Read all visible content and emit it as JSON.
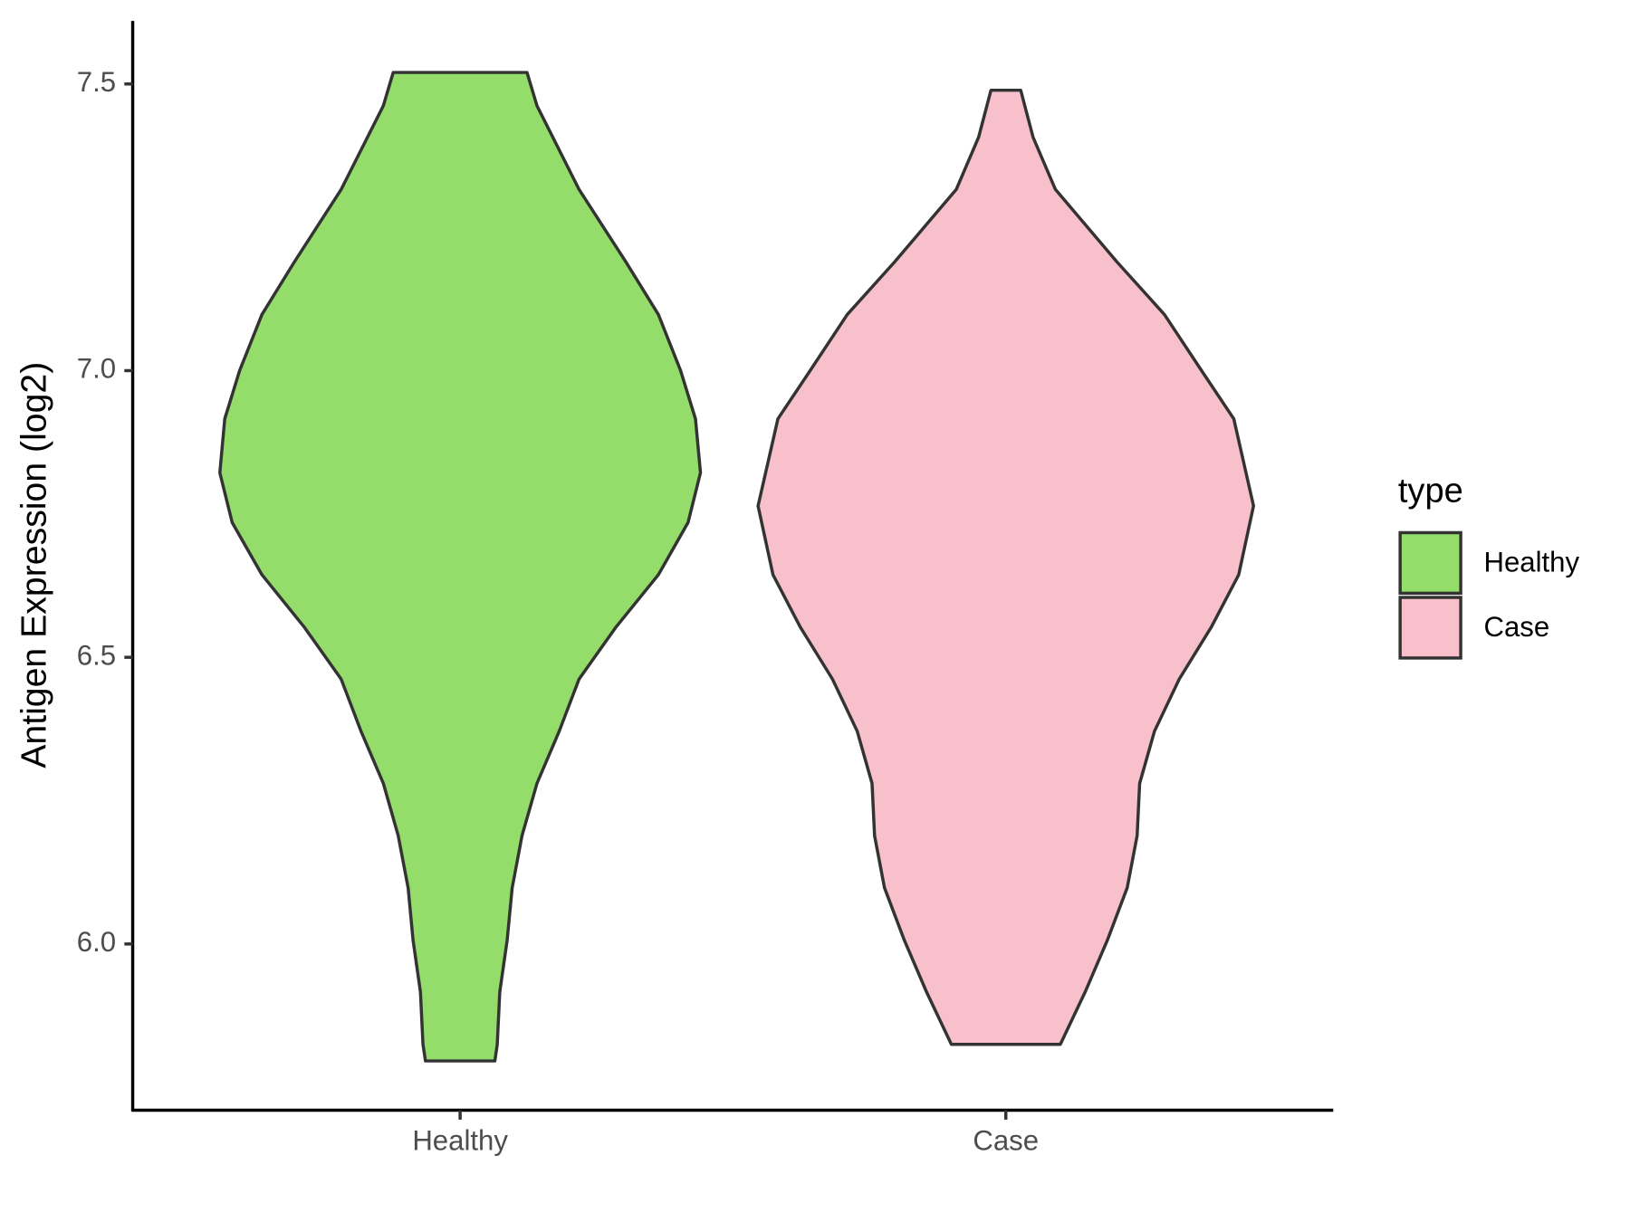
{
  "chart_data": {
    "type": "violin",
    "y_label": "Antigen Expression (log2)",
    "categories": [
      "Healthy",
      "Case"
    ],
    "ylim": [
      5.71,
      7.61
    ],
    "yticks": [
      {
        "value": 6.0,
        "label": "6.0"
      },
      {
        "value": 6.5,
        "label": "6.5"
      },
      {
        "value": 7.0,
        "label": "7.0"
      },
      {
        "value": 7.5,
        "label": "7.5"
      }
    ],
    "legend_title": "type",
    "legend_position": "right",
    "series": [
      {
        "name": "Healthy",
        "color": "#95dd6b",
        "y": [
          7.52,
          7.462,
          7.316,
          7.189,
          7.098,
          7.0,
          6.916,
          6.822,
          6.735,
          6.644,
          6.553,
          6.462,
          6.371,
          6.28,
          6.189,
          6.098,
          6.007,
          5.916,
          5.825,
          5.796
        ],
        "density": [
          0.27,
          0.31,
          0.48,
          0.67,
          0.8,
          0.89,
          0.95,
          0.97,
          0.92,
          0.8,
          0.63,
          0.48,
          0.4,
          0.31,
          0.25,
          0.21,
          0.19,
          0.16,
          0.15,
          0.14
        ]
      },
      {
        "name": "Case",
        "color": "#f7c0cb",
        "y": [
          7.489,
          7.407,
          7.316,
          7.189,
          7.098,
          7.0,
          6.916,
          6.764,
          6.644,
          6.553,
          6.462,
          6.371,
          6.28,
          6.189,
          6.098,
          6.007,
          5.916,
          5.825
        ],
        "density": [
          0.06,
          0.11,
          0.2,
          0.45,
          0.64,
          0.79,
          0.92,
          1.0,
          0.94,
          0.83,
          0.7,
          0.6,
          0.54,
          0.53,
          0.49,
          0.41,
          0.32,
          0.22
        ]
      }
    ]
  }
}
